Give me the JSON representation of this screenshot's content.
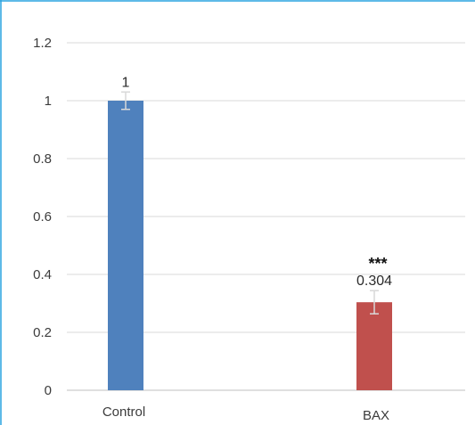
{
  "chart_data": {
    "type": "bar",
    "title": "",
    "xlabel": "",
    "ylabel": "",
    "categories": [
      "Control",
      "BAX"
    ],
    "values": [
      1,
      0.304
    ],
    "errors": [
      0.03,
      0.04
    ],
    "data_labels": [
      "1",
      "0.304"
    ],
    "significance": [
      "",
      "***"
    ],
    "colors": [
      "#4f81bd",
      "#c0504d"
    ],
    "ylim": [
      0,
      1.2
    ],
    "yticks": [
      0,
      0.2,
      0.4,
      0.6,
      0.8,
      1,
      1.2
    ],
    "ytick_labels": [
      "0",
      "0.2",
      "0.4",
      "0.6",
      "0.8",
      "1",
      "1.2"
    ],
    "grid": true,
    "legend": "none",
    "frame_color": "#29a3e0"
  }
}
